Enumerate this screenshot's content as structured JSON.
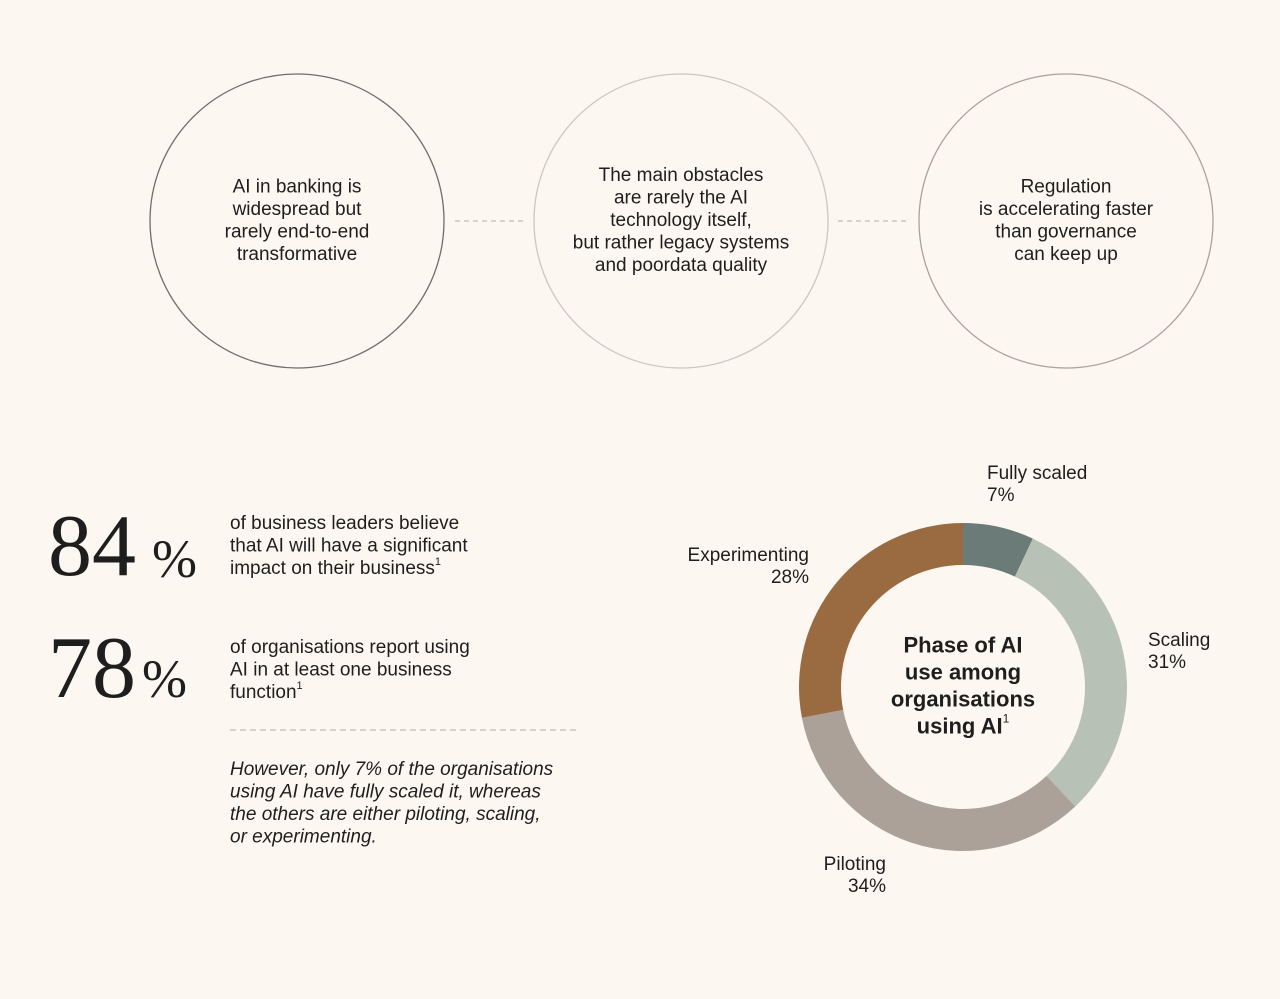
{
  "circles": [
    {
      "lines": [
        "AI in banking is",
        "widespread but",
        "rarely end-to-end",
        "transformative"
      ]
    },
    {
      "lines": [
        "The main obstacles",
        "are rarely the AI",
        "technology itself,",
        "but rather legacy systems",
        "and poordata quality"
      ]
    },
    {
      "lines": [
        "Regulation",
        "is accelerating faster",
        "than governance",
        "can keep up"
      ]
    }
  ],
  "stats": [
    {
      "value": 84,
      "unit": "%",
      "lines": [
        "of business leaders believe",
        "that AI will have a significant",
        "impact on their business"
      ],
      "note": "1"
    },
    {
      "value": 78,
      "unit": "%",
      "lines": [
        "of organisations report using",
        "AI in at least one business",
        "function"
      ],
      "note": "1"
    }
  ],
  "note": {
    "lines": [
      "However, only 7% of the organisations",
      "using AI have fully scaled it, whereas",
      "the others are either piloting, scaling,",
      "or experimenting."
    ]
  },
  "chart_data": {
    "type": "donut",
    "title_lines": [
      "Phase of AI",
      "use among",
      "organisations",
      "using AI"
    ],
    "title_note": "1",
    "categories": [
      "Fully scaled",
      "Scaling",
      "Piloting",
      "Experimenting"
    ],
    "values": [
      7,
      31,
      34,
      28
    ],
    "value_labels": [
      "7%",
      "31%",
      "34%",
      "28%"
    ],
    "colors": [
      "#6b7b77",
      "#b8c1b6",
      "#aba198",
      "#9a6b40"
    ]
  }
}
